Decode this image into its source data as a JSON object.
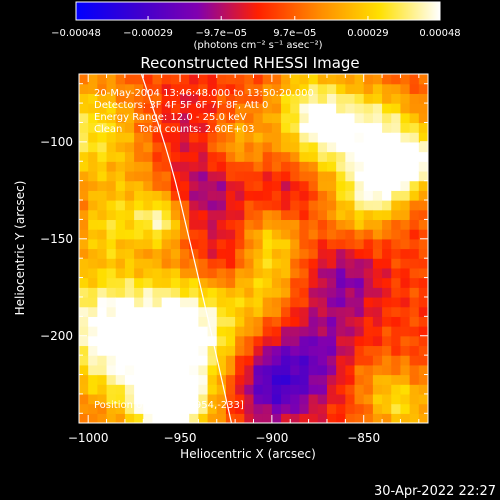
{
  "footer_timestamp": "30-Apr-2022 22:27",
  "chart_data": {
    "type": "heatmap",
    "title": "Reconstructed RHESSI Image",
    "xlabel": "Heliocentric X (arcsec)",
    "ylabel": "Heliocentric Y (arcsec)",
    "xlim": [
      -1005,
      -815
    ],
    "ylim": [
      -245,
      -65
    ],
    "xticks": [
      -1000,
      -950,
      -900,
      -850
    ],
    "xtick_labels": [
      "−1000",
      "−950",
      "−900",
      "−850"
    ],
    "yticks": [
      -100,
      -150,
      -200
    ],
    "ytick_labels": [
      "−100",
      "−150",
      "−200"
    ],
    "colorbar": {
      "range": [
        -0.00048,
        0.00048
      ],
      "ticks": [
        -0.00048,
        -0.00029,
        -9.7e-05,
        9.7e-05,
        0.00029,
        0.00048
      ],
      "tick_labels": [
        "−0.00048",
        "−0.00029",
        "−9.7e−05",
        "9.7e−05",
        "0.00029",
        "0.00048"
      ],
      "unit_label": "(photons cm⁻² s⁻¹ asec⁻²)",
      "colors": [
        "#0000ff",
        "#3c00d0",
        "#8000b0",
        "#ff2000",
        "#ff8a00",
        "#ffe000",
        "#ffffff"
      ]
    },
    "annotations": {
      "time_range": "20-May-2004 13:46:48.000 to 13:50:20.000",
      "detectors": "Detectors: 3F 4F 5F 6F 7F 8F, Att 0",
      "energy_range": "Energy Range: 12.0 - 25.0 keV",
      "clean_info": "Clean     Total counts: 2.60E+03",
      "position_of_peak": "Position of Peak = [-954,-233]"
    },
    "limb_curve": [
      [
        -971,
        -65
      ],
      [
        -955,
        -110
      ],
      [
        -945,
        -150
      ],
      [
        -935,
        -190
      ],
      [
        -922,
        -245
      ]
    ],
    "emission_sources": [
      {
        "x": -955,
        "y": -235,
        "value": 0.00048,
        "radius": 14
      },
      {
        "x": -965,
        "y": -205,
        "value": 0.00034,
        "radius": 26
      },
      {
        "x": -995,
        "y": -195,
        "value": 0.0003,
        "radius": 22
      },
      {
        "x": -940,
        "y": -195,
        "value": 0.00026,
        "radius": 18
      },
      {
        "x": -1000,
        "y": -95,
        "value": 0.0003,
        "radius": 20
      },
      {
        "x": -960,
        "y": -140,
        "value": 0.0003,
        "radius": 9
      },
      {
        "x": -990,
        "y": -145,
        "value": 0.00018,
        "radius": 12
      },
      {
        "x": -975,
        "y": -130,
        "value": 0.00012,
        "radius": 14
      },
      {
        "x": -870,
        "y": -95,
        "value": 0.0003,
        "radius": 16
      },
      {
        "x": -840,
        "y": -95,
        "value": 0.00034,
        "radius": 16
      },
      {
        "x": -840,
        "y": -120,
        "value": 0.00036,
        "radius": 12
      },
      {
        "x": -855,
        "y": -135,
        "value": 0.00018,
        "radius": 14
      },
      {
        "x": -880,
        "y": -80,
        "value": 0.00022,
        "radius": 16
      },
      {
        "x": -900,
        "y": -150,
        "value": 0.00022,
        "radius": 12
      },
      {
        "x": -905,
        "y": -175,
        "value": 0.0002,
        "radius": 14
      },
      {
        "x": -820,
        "y": -110,
        "value": 0.00036,
        "radius": 10
      },
      {
        "x": -920,
        "y": -100,
        "value": 0.00018,
        "radius": 12
      },
      {
        "x": -830,
        "y": -235,
        "value": 0.00026,
        "radius": 12
      },
      {
        "x": -850,
        "y": -220,
        "value": 0.00012,
        "radius": 12
      },
      {
        "x": -875,
        "y": -210,
        "value": -0.00022,
        "radius": 18
      },
      {
        "x": -900,
        "y": -225,
        "value": -0.0003,
        "radius": 14
      },
      {
        "x": -860,
        "y": -170,
        "value": -0.0002,
        "radius": 14
      },
      {
        "x": -935,
        "y": -125,
        "value": -0.00018,
        "radius": 14
      },
      {
        "x": -925,
        "y": -160,
        "value": -0.00014,
        "radius": 12
      },
      {
        "x": -890,
        "y": -125,
        "value": -0.00012,
        "radius": 12
      },
      {
        "x": -945,
        "y": -90,
        "value": -0.0001,
        "radius": 14
      }
    ]
  }
}
